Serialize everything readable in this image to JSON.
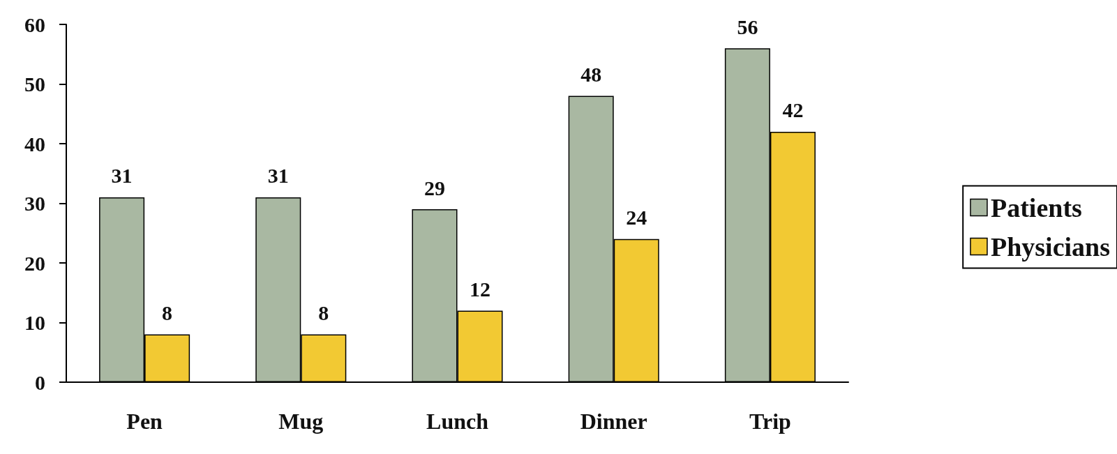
{
  "chart_data": {
    "type": "bar",
    "categories": [
      "Pen",
      "Mug",
      "Lunch",
      "Dinner",
      "Trip"
    ],
    "series": [
      {
        "name": "Patients",
        "color": "#a9b8a2",
        "values": [
          31,
          31,
          29,
          48,
          56
        ]
      },
      {
        "name": "Physicians",
        "color": "#f2c933",
        "values": [
          8,
          8,
          12,
          24,
          42
        ]
      }
    ],
    "ylim": [
      0,
      60
    ],
    "yticks": [
      0,
      10,
      20,
      30,
      40,
      50,
      60
    ],
    "grid": false,
    "legend": "right",
    "data_labels": true
  }
}
